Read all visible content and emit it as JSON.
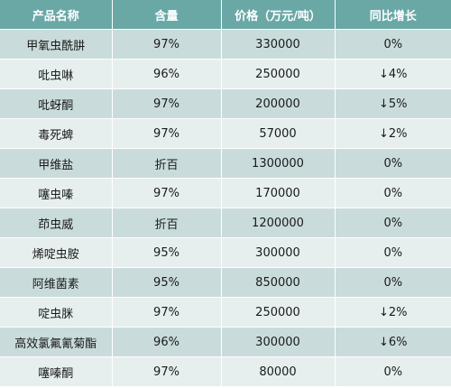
{
  "table": {
    "headers": [
      "产品名称",
      "含量",
      "价格（万元/吨）",
      "同比增长"
    ],
    "rows": [
      {
        "name": "甲氧虫酰肼",
        "content": "97%",
        "price": "330000",
        "yoy": "0%"
      },
      {
        "name": "吡虫啉",
        "content": "96%",
        "price": "250000",
        "yoy": "↓4%"
      },
      {
        "name": "吡蚜酮",
        "content": "97%",
        "price": "200000",
        "yoy": "↓5%"
      },
      {
        "name": "毒死蜱",
        "content": "97%",
        "price": "57000",
        "yoy": "↓2%"
      },
      {
        "name": "甲维盐",
        "content": "折百",
        "price": "1300000",
        "yoy": "0%"
      },
      {
        "name": "噻虫嗪",
        "content": "97%",
        "price": "170000",
        "yoy": "0%"
      },
      {
        "name": "茚虫威",
        "content": "折百",
        "price": "1200000",
        "yoy": "0%"
      },
      {
        "name": "烯啶虫胺",
        "content": "95%",
        "price": "300000",
        "yoy": "0%"
      },
      {
        "name": "阿维菌素",
        "content": "95%",
        "price": "850000",
        "yoy": "0%"
      },
      {
        "name": "啶虫脒",
        "content": "97%",
        "price": "250000",
        "yoy": "↓2%"
      },
      {
        "name": "高效氯氟氰菊酯",
        "content": "96%",
        "price": "300000",
        "yoy": "↓6%"
      },
      {
        "name": "噻嗪酮",
        "content": "97%",
        "price": "80000",
        "yoy": "0%"
      }
    ]
  },
  "colors": {
    "header_bg": "#6aa8a6",
    "row_dark": "#c9dcdb",
    "row_light": "#e6efee"
  }
}
